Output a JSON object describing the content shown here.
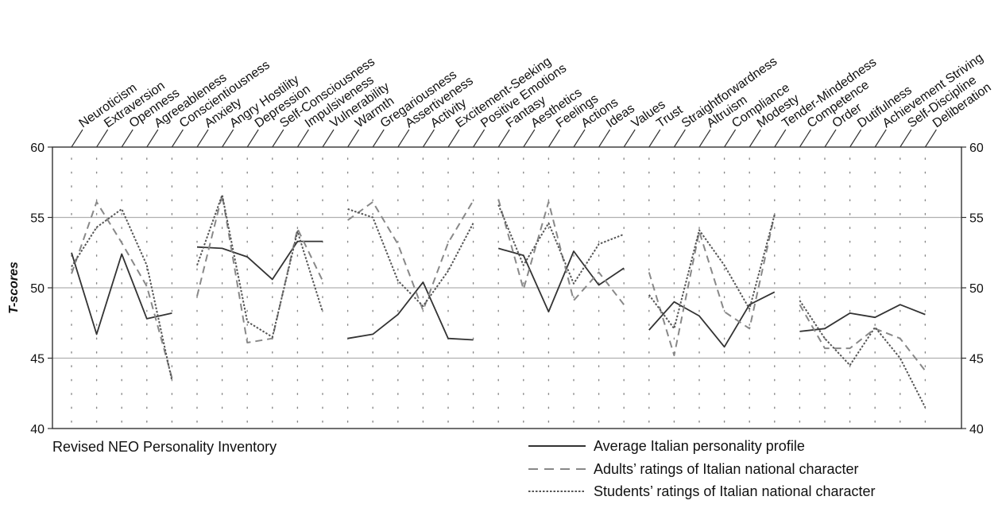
{
  "chart_data": {
    "type": "line",
    "ylabel": "T-scores",
    "ylim": [
      40,
      60
    ],
    "yticks": [
      40,
      45,
      50,
      55,
      60
    ],
    "caption": "Revised NEO Personality Inventory",
    "grid": "horizontal lines at 45, 50, 55; dotted guides between",
    "legend_position": "bottom-right",
    "categories": [
      "Neuroticism",
      "Extraversion",
      "Openness",
      "Agreeableness",
      "Conscientiousness",
      "Anxiety",
      "Angry Hostility",
      "Depression",
      "Self-Consciousness",
      "Impulsiveness",
      "Vulnerability",
      "Warmth",
      "Gregariousness",
      "Assertiveness",
      "Activity",
      "Excitement-Seeking",
      "Positive Emotions",
      "Fantasy",
      "Aesthetics",
      "Feelings",
      "Actions",
      "Ideas",
      "Values",
      "Trust",
      "Straightforwardness",
      "Altruism",
      "Compliance",
      "Modesty",
      "Tender-Mindedness",
      "Competence",
      "Order",
      "Dutifulness",
      "Achievement Striving",
      "Self-Discipline",
      "Deliberation"
    ],
    "groups": [
      {
        "start": 0,
        "end": 4
      },
      {
        "start": 5,
        "end": 10
      },
      {
        "start": 11,
        "end": 16
      },
      {
        "start": 17,
        "end": 22
      },
      {
        "start": 23,
        "end": 28
      },
      {
        "start": 29,
        "end": 34
      }
    ],
    "series": [
      {
        "name": "Average Italian personality profile",
        "style": "solid",
        "color": "#333333",
        "values": [
          52.5,
          46.7,
          52.4,
          47.8,
          48.2,
          52.9,
          52.8,
          52.2,
          50.6,
          53.3,
          53.3,
          46.4,
          46.7,
          48.1,
          50.4,
          46.4,
          46.3,
          52.8,
          52.3,
          48.3,
          52.6,
          50.2,
          51.4,
          47.0,
          49.0,
          48.0,
          45.8,
          48.8,
          49.7,
          46.9,
          47.1,
          48.2,
          47.9,
          48.8,
          48.1
        ]
      },
      {
        "name": "Adults’ ratings of Italian national character",
        "style": "dashed",
        "color": "#888888",
        "values": [
          51.0,
          56.1,
          53.2,
          50.1,
          43.6,
          49.4,
          56.6,
          46.1,
          46.4,
          54.2,
          50.5,
          54.8,
          56.1,
          53.1,
          48.4,
          53.2,
          56.2,
          56.3,
          49.9,
          56.1,
          49.1,
          51.1,
          48.8,
          51.1,
          45.2,
          54.0,
          48.3,
          47.1,
          55.2,
          48.8,
          45.7,
          45.7,
          47.1,
          46.4,
          44.1
        ]
      },
      {
        "name": "Students’ ratings of Italian national character",
        "style": "dotted",
        "color": "#555555",
        "values": [
          51.5,
          54.3,
          55.6,
          51.6,
          43.4,
          51.6,
          56.6,
          47.6,
          46.5,
          54.0,
          48.3,
          55.6,
          55.0,
          50.5,
          48.7,
          51.2,
          54.6,
          55.9,
          51.6,
          54.6,
          50.3,
          53.1,
          53.8,
          49.5,
          47.1,
          54.1,
          51.6,
          48.5,
          55.2,
          49.1,
          46.4,
          44.5,
          47.2,
          45.0,
          41.5
        ]
      }
    ]
  }
}
